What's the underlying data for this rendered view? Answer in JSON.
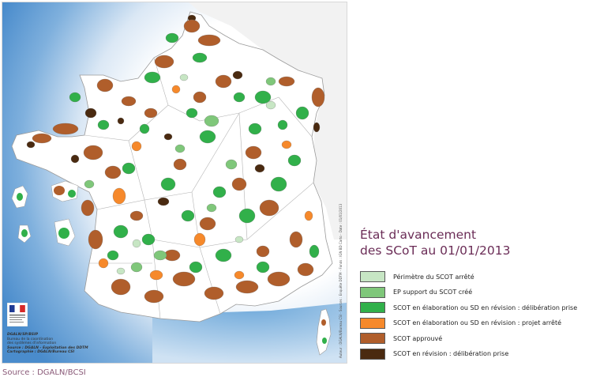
{
  "legend": {
    "title_line1": "État d'avancement",
    "title_line2": "des SCoT au 01/01/2013",
    "items": [
      {
        "label": "Périmètre du SCOT arrêté",
        "color": "#c7e6c4"
      },
      {
        "label": "EP support du SCOT créé",
        "color": "#7fc77a"
      },
      {
        "label": "SCOT en élaboration ou SD en révision : délibération prise",
        "color": "#31b04a"
      },
      {
        "label": "SCOT en élaboration ou SD en révision : projet arrêté",
        "color": "#f6892b"
      },
      {
        "label": "SCOT approuvé",
        "color": "#b05e2b"
      },
      {
        "label": "SCOT en révision : délibération prise",
        "color": "#4a2a10"
      }
    ]
  },
  "map": {
    "sea_color": "#5a9bd5",
    "land_color": "#ffffff",
    "credits": {
      "org_line1": "DGALN/SP/BSIP",
      "org_line2": "Bureau de la coordination",
      "org_line3": "des systèmes d'information",
      "source": "Source : DGALN - Exploitation des DDTM",
      "cartography": "Cartographie : DGALN/Bureau CSI"
    },
    "vertical_note": "Auteur : DGALN/Bureau CSI - Sources : Enquête DDTM - Fonds : IGN BD Carto - Date : 01/01/2013"
  },
  "footer": {
    "source": "Source : DGALN/BCSI"
  }
}
